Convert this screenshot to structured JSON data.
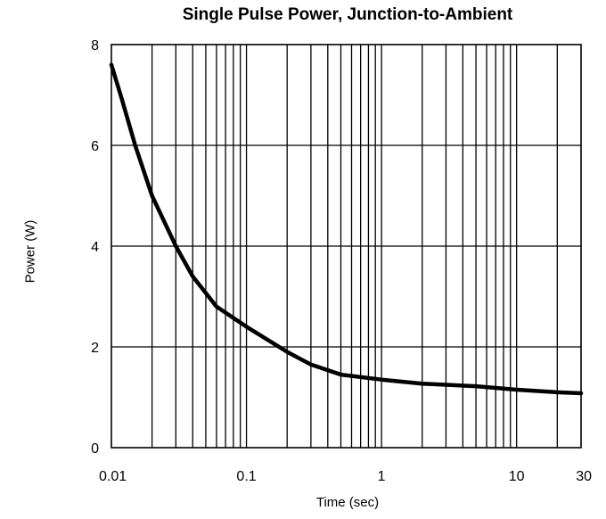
{
  "chart_data": {
    "type": "line",
    "title": "Single Pulse Power, Junction-to-Ambient",
    "xlabel": "Time (sec)",
    "ylabel": "Power  (W)",
    "x_scale": "log",
    "xlim": [
      0.01,
      30
    ],
    "ylim": [
      0,
      8
    ],
    "x_ticks": [
      0.01,
      0.1,
      1,
      10,
      30
    ],
    "x_tick_labels": [
      "0.01",
      "0.1",
      "1",
      "10",
      "30"
    ],
    "y_ticks": [
      0,
      2,
      4,
      6,
      8
    ],
    "y_tick_labels": [
      "0",
      "2",
      "4",
      "6",
      "8"
    ],
    "grid": true,
    "colors": {
      "line": "#000000",
      "grid": "#000000"
    },
    "series": [
      {
        "x": [
          0.01,
          0.012,
          0.015,
          0.02,
          0.03,
          0.04,
          0.06,
          0.1,
          0.2,
          0.3,
          0.5,
          1,
          2,
          5,
          10,
          20,
          30
        ],
        "values": [
          7.6,
          6.9,
          6.0,
          5.0,
          4.0,
          3.4,
          2.8,
          2.4,
          1.9,
          1.65,
          1.45,
          1.35,
          1.27,
          1.22,
          1.15,
          1.1,
          1.08
        ]
      }
    ]
  }
}
